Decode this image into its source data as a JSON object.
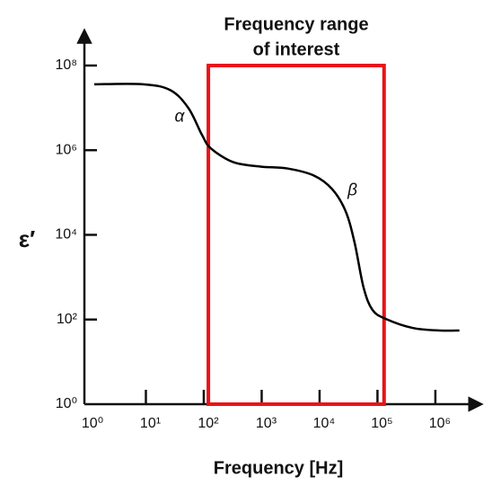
{
  "chart_data": {
    "type": "line",
    "title_lines": [
      "Frequency range",
      "of interest"
    ],
    "xlabel": "Frequency [Hz]",
    "ylabel": "ε′",
    "xscale": "log",
    "yscale": "log",
    "xlim": [
      1,
      5000000
    ],
    "ylim": [
      1,
      500000000
    ],
    "xticks": [
      {
        "value": 1,
        "label": "10⁰"
      },
      {
        "value": 10,
        "label": "10¹"
      },
      {
        "value": 100,
        "label": "10²"
      },
      {
        "value": 1000,
        "label": "10³"
      },
      {
        "value": 10000,
        "label": "10⁴"
      },
      {
        "value": 100000,
        "label": "10⁵"
      },
      {
        "value": 1000000,
        "label": "10⁶"
      }
    ],
    "yticks": [
      {
        "value": 1,
        "label": "10⁰"
      },
      {
        "value": 100,
        "label": "10²"
      },
      {
        "value": 10000,
        "label": "10⁴"
      },
      {
        "value": 1000000,
        "label": "10⁶"
      },
      {
        "value": 100000000,
        "label": "10⁸"
      }
    ],
    "series": [
      {
        "color": "#000000",
        "x": [
          1.28,
          9.1,
          26.7,
          54.5,
          93,
          133,
          325,
          948,
          2770,
          8070,
          16500,
          28200,
          40300,
          57500,
          82200,
          140000,
          409000,
          1200000,
          2600000
        ],
        "values": [
          36000000,
          36000000,
          26000000,
          9800000,
          2300000,
          1100000,
          520000,
          410000,
          370000,
          250000,
          120000,
          36000,
          6500,
          570,
          168,
          103,
          63,
          55,
          55
        ]
      }
    ],
    "highlight": {
      "x": [
        120,
        130000
      ],
      "y": [
        1,
        100000000
      ],
      "color": "#e8141a"
    },
    "annotations": [
      {
        "text": "α",
        "x": 38,
        "y": 6000000
      },
      {
        "text": "β",
        "x": 37000,
        "y": 110000
      }
    ]
  }
}
